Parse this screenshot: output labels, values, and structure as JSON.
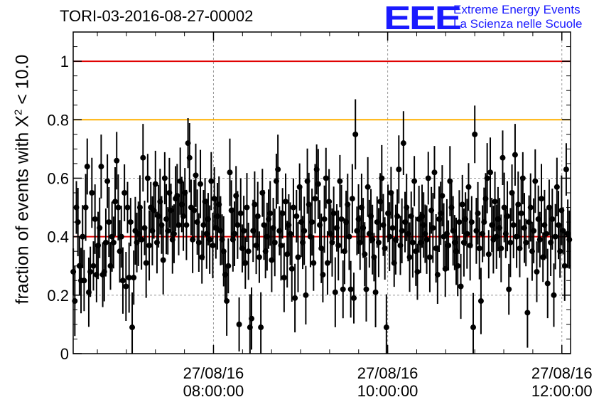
{
  "chart_data": {
    "type": "scatter",
    "title": "TORI-03-2016-08-27-00002",
    "ylabel_prefix": "fraction of events with ",
    "ylabel_symbol": "X",
    "ylabel_exp": "2",
    "ylabel_suffix": " < 10.0",
    "ylim": [
      0,
      1.1
    ],
    "yticks": [
      0,
      0.2,
      0.4,
      0.6,
      0.8,
      1
    ],
    "ytick_labels": [
      "0",
      "0.2",
      "0.4",
      "0.6",
      "0.8",
      "1"
    ],
    "xlim_hours": [
      6.3889,
      12.1
    ],
    "xticks": [
      {
        "hour": 8,
        "line1": "27/08/16",
        "line2": "08:00:00"
      },
      {
        "hour": 10,
        "line1": "27/08/16",
        "line2": "10:00:00"
      },
      {
        "hour": 12,
        "line1": "27/08/16",
        "line2": "12:00:00"
      }
    ],
    "grid": true,
    "reference_lines": [
      {
        "y": 1.0,
        "color": "#e00000"
      },
      {
        "y": 0.8,
        "color": "#ffb000"
      },
      {
        "y": 0.4,
        "color": "#e00000"
      }
    ],
    "series": [
      {
        "x_hours_start": 6.39,
        "x_hours_step": 0.0178,
        "marker_color": "#000000",
        "y": [
          0.28,
          0.18,
          0.5,
          0.45,
          0.3,
          0.25,
          0.4,
          0.25,
          0.5,
          0.64,
          0.21,
          0.28,
          0.55,
          0.3,
          0.46,
          0.27,
          0.37,
          0.43,
          0.64,
          0.27,
          0.28,
          0.38,
          0.59,
          0.45,
          0.3,
          0.4,
          0.38,
          0.52,
          0.66,
          0.5,
          0.35,
          0.4,
          0.25,
          0.55,
          0.23,
          0.5,
          0.26,
          0.45,
          0.09,
          0.26,
          0.42,
          0.38,
          0.41,
          0.5,
          0.39,
          0.67,
          0.43,
          0.31,
          0.6,
          0.37,
          0.5,
          0.42,
          0.49,
          0.58,
          0.38,
          0.47,
          0.52,
          0.44,
          0.32,
          0.6,
          0.46,
          0.42,
          0.55,
          0.49,
          0.39,
          0.41,
          0.53,
          0.54,
          0.44,
          0.59,
          0.51,
          0.47,
          0.55,
          0.44,
          0.72,
          0.67,
          0.5,
          0.39,
          0.49,
          0.61,
          0.45,
          0.38,
          0.58,
          0.33,
          0.44,
          0.52,
          0.41,
          0.46,
          0.39,
          0.59,
          0.37,
          0.53,
          0.43,
          0.47,
          0.51,
          0.42,
          0.39,
          0.35,
          0.27,
          0.18,
          0.3,
          0.62,
          0.49,
          0.39,
          0.41,
          0.54,
          0.44,
          0.1,
          0.48,
          0.36,
          0.42,
          0.31,
          0.5,
          0.35,
          0.09,
          0.12,
          0.42,
          0.51,
          0.37,
          0.47,
          0.33,
          0.09,
          0.55,
          0.44,
          0.35,
          0.4,
          0.46,
          0.48,
          0.32,
          0.43,
          0.38,
          0.59,
          0.63,
          0.42,
          0.37,
          0.48,
          0.26,
          0.52,
          0.34,
          0.44,
          0.41,
          0.29,
          0.5,
          0.19,
          0.47,
          0.33,
          0.57,
          0.45,
          0.38,
          0.42,
          0.2,
          0.59,
          0.51,
          0.4,
          0.45,
          0.31,
          0.53,
          0.63,
          0.58,
          0.44,
          0.36,
          0.27,
          0.46,
          0.6,
          0.31,
          0.52,
          0.41,
          0.38,
          0.48,
          0.21,
          0.43,
          0.37,
          0.59,
          0.46,
          0.22,
          0.35,
          0.45,
          0.51,
          0.4,
          0.22,
          0.53,
          0.19,
          0.75,
          0.42,
          0.46,
          0.38,
          0.5,
          0.43,
          0.34,
          0.22,
          0.57,
          0.41,
          0.47,
          0.39,
          0.33,
          0.21,
          0.45,
          0.38,
          0.52,
          0.6,
          0.44,
          0.36,
          0.09,
          0.48,
          0.4,
          0.55,
          0.43,
          0.31,
          0.39,
          0.47,
          0.63,
          0.37,
          0.42,
          0.72,
          0.45,
          0.5,
          0.41,
          0.33,
          0.47,
          0.38,
          0.59,
          0.35,
          0.28,
          0.46,
          0.38,
          0.47,
          0.44,
          0.41,
          0.39,
          0.6,
          0.33,
          0.49,
          0.43,
          0.62,
          0.36,
          0.27,
          0.46,
          0.48,
          0.54,
          0.4,
          0.29,
          0.41,
          0.37,
          0.59,
          0.5,
          0.42,
          0.38,
          0.35,
          0.3,
          0.45,
          0.23,
          0.51,
          0.38,
          0.46,
          0.41,
          0.57,
          0.37,
          0.45,
          0.09,
          0.75,
          0.42,
          0.48,
          0.36,
          0.18,
          0.41,
          0.45,
          0.53,
          0.6,
          0.34,
          0.62,
          0.44,
          0.39,
          0.52,
          0.4,
          0.46,
          0.43,
          0.36,
          0.67,
          0.5,
          0.41,
          0.47,
          0.22,
          0.38,
          0.55,
          0.44,
          0.68,
          0.4,
          0.51,
          0.36,
          0.48,
          0.6,
          0.43,
          0.38,
          0.14,
          0.45,
          0.5,
          0.35,
          0.42,
          0.59,
          0.28,
          0.46,
          0.39,
          0.53,
          0.33,
          0.44,
          0.41,
          0.24,
          0.5,
          0.38,
          0.46,
          0.2,
          0.4,
          0.57,
          0.44,
          0.35,
          0.49,
          0.42,
          0.3,
          0.63,
          0.41,
          0.39,
          0.47,
          0.36,
          0.5,
          0.31,
          0.43,
          0.45,
          0.4,
          0.52,
          0.38,
          0.66,
          0.44,
          0.34,
          0.22,
          0.14,
          0.41,
          0.48,
          0.36,
          0.63,
          0.45,
          0.39,
          0.2,
          0.5,
          0.42,
          0.37,
          0.29,
          0.56,
          0.6,
          0.43,
          0.34,
          0.47,
          0.4,
          0.6
        ]
      }
    ]
  },
  "logo": {
    "mark": "EEE",
    "line1": "Extreme Energy Events",
    "line2": "La Scienza nelle Scuole"
  },
  "colors": {
    "axis": "#000000",
    "grid": "#999999",
    "logo": "#1a1aff"
  }
}
